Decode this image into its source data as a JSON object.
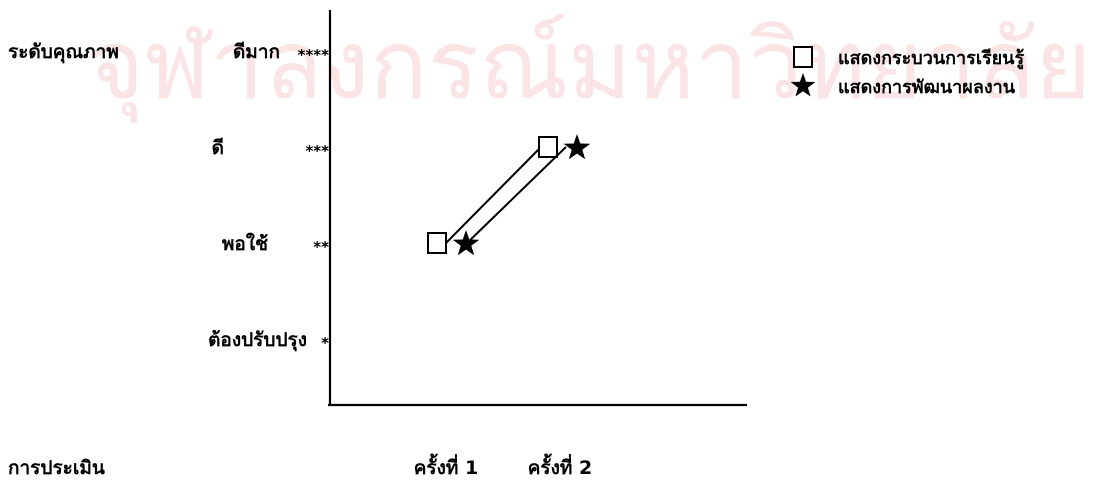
{
  "watermark": "จุฬาลงกรณ์มหาวิทยาลัย",
  "chart_data": {
    "type": "line",
    "title": "",
    "ylabel": "ระดับคุณภาพ",
    "xlabel": "การประเมิน",
    "categories": [
      "ครั้งที่ 1",
      "ครั้งที่ 2"
    ],
    "y_levels": [
      {
        "value": 1,
        "label": "ต้องปรับปรุง",
        "stars": "*"
      },
      {
        "value": 2,
        "label": "พอใช้",
        "stars": "**"
      },
      {
        "value": 3,
        "label": "ดี",
        "stars": "***"
      },
      {
        "value": 4,
        "label": "ดีมาก",
        "stars": "****"
      }
    ],
    "ylim": [
      0.3,
      4.3
    ],
    "series": [
      {
        "name": "แสดงกระบวนการเรียนรู้",
        "marker": "square",
        "values": [
          2,
          3
        ]
      },
      {
        "name": "แสดงการพัฒนาผลงาน",
        "marker": "star",
        "values": [
          2,
          3
        ]
      }
    ],
    "legend_position": "top-right",
    "grid": false,
    "colors": {
      "ink": "#000000",
      "watermark": "#fbe4e6"
    }
  }
}
